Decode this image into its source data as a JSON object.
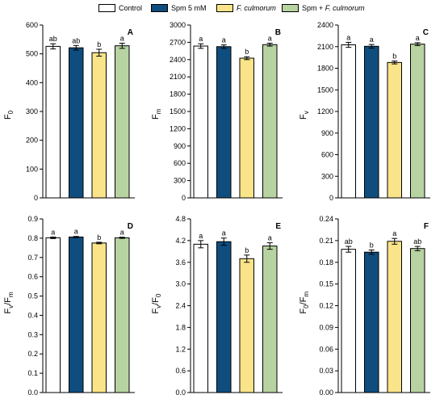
{
  "legend": {
    "items": [
      {
        "label": "Control",
        "label_italic": "",
        "color": "#ffffff"
      },
      {
        "label": "Spm 5 mM",
        "label_italic": "",
        "color": "#0f4d7e"
      },
      {
        "label": "",
        "label_italic": "F. culmorum",
        "color": "#fae48a"
      },
      {
        "label": "Spm + ",
        "label_italic": "F. culmorum",
        "color": "#b7d3a1"
      }
    ]
  },
  "chart_data": [
    {
      "type": "bar",
      "panel_label": "A",
      "ylabel_main": "F",
      "ylabel_sub": "0",
      "ylabel_sup": "",
      "ylabel_tail": "",
      "ylim": [
        0,
        600
      ],
      "ytick_labels": [
        "0",
        "100",
        "200",
        "300",
        "400",
        "500",
        "600"
      ],
      "categories": [
        "Control",
        "Spm 5 mM",
        "F. culmorum",
        "Spm + F. culmorum"
      ],
      "values": [
        526,
        521,
        504,
        528
      ],
      "errors": [
        9,
        8,
        12,
        9
      ],
      "letters": [
        "ab",
        "ab",
        "b",
        "a"
      ]
    },
    {
      "type": "bar",
      "panel_label": "B",
      "ylabel_main": "F",
      "ylabel_sub": "m",
      "ylabel_sup": "",
      "ylabel_tail": "",
      "ylim": [
        0,
        3000
      ],
      "ytick_labels": [
        "0",
        "300",
        "600",
        "900",
        "1200",
        "1500",
        "1800",
        "2100",
        "2400",
        "2700",
        "3000"
      ],
      "categories": [
        "Control",
        "Spm 5 mM",
        "F. culmorum",
        "Spm + F. culmorum"
      ],
      "values": [
        2635,
        2625,
        2425,
        2660
      ],
      "errors": [
        40,
        30,
        25,
        25
      ],
      "letters": [
        "a",
        "a",
        "b",
        "a"
      ]
    },
    {
      "type": "bar",
      "panel_label": "C",
      "ylabel_main": "F",
      "ylabel_sub": "v",
      "ylabel_sup": "",
      "ylabel_tail": "",
      "ylim": [
        0,
        2400
      ],
      "ytick_labels": [
        "0",
        "300",
        "600",
        "900",
        "1200",
        "1500",
        "1800",
        "2100",
        "2400"
      ],
      "categories": [
        "Control",
        "Spm 5 mM",
        "F. culmorum",
        "Spm + F. culmorum"
      ],
      "values": [
        2125,
        2105,
        1880,
        2135
      ],
      "errors": [
        35,
        25,
        20,
        20
      ],
      "letters": [
        "a",
        "a",
        "b",
        "a"
      ]
    },
    {
      "type": "bar",
      "panel_label": "D",
      "ylabel_main": "F",
      "ylabel_sub": "v",
      "ylabel_sup": "",
      "ylabel_tail": "/F",
      "ylabel_sub2": "m",
      "ylim": [
        0,
        0.9
      ],
      "ytick_labels": [
        "0.0",
        "0.1",
        "0.2",
        "0.3",
        "0.4",
        "0.5",
        "0.6",
        "0.7",
        "0.8",
        "0.9"
      ],
      "categories": [
        "Control",
        "Spm 5 mM",
        "F. culmorum",
        "Spm + F. culmorum"
      ],
      "values": [
        0.802,
        0.806,
        0.775,
        0.802
      ],
      "errors": [
        0.004,
        0.003,
        0.004,
        0.003
      ],
      "letters": [
        "a",
        "a",
        "b",
        "a"
      ]
    },
    {
      "type": "bar",
      "panel_label": "E",
      "ylabel_main": "F",
      "ylabel_sub": "v",
      "ylabel_sup": "",
      "ylabel_tail": "/F",
      "ylabel_sub2": "0",
      "ylim": [
        0,
        4.8
      ],
      "ytick_labels": [
        "0.0",
        "0.6",
        "1.2",
        "1.8",
        "2.4",
        "3.0",
        "3.6",
        "4.2",
        "4.8"
      ],
      "categories": [
        "Control",
        "Spm 5 mM",
        "F. culmorum",
        "Spm + F. culmorum"
      ],
      "values": [
        4.1,
        4.17,
        3.7,
        4.05
      ],
      "errors": [
        0.1,
        0.1,
        0.1,
        0.09
      ],
      "letters": [
        "a",
        "a",
        "b",
        "a"
      ]
    },
    {
      "type": "bar",
      "panel_label": "F",
      "ylabel_main": "F",
      "ylabel_sub": "0",
      "ylabel_sup": "",
      "ylabel_tail": "/F",
      "ylabel_sub2": "m",
      "ylim": [
        0,
        0.24
      ],
      "ytick_labels": [
        "0.00",
        "0.03",
        "0.06",
        "0.09",
        "0.12",
        "0.15",
        "0.18",
        "0.21",
        "0.24"
      ],
      "categories": [
        "Control",
        "Spm 5 mM",
        "F. culmorum",
        "Spm + F. culmorum"
      ],
      "values": [
        0.198,
        0.194,
        0.209,
        0.199
      ],
      "errors": [
        0.004,
        0.003,
        0.004,
        0.003
      ],
      "letters": [
        "ab",
        "b",
        "a",
        "ab"
      ]
    }
  ]
}
